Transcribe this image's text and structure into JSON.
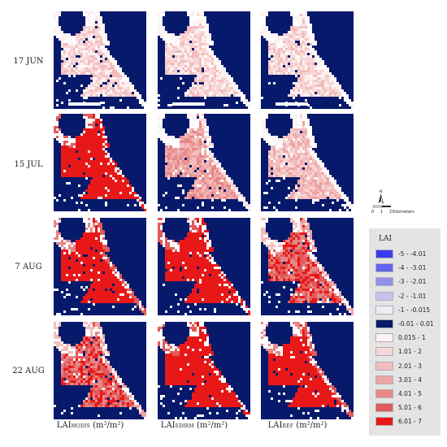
{
  "rows": [
    {
      "label": "17 JUN",
      "levels": [
        1,
        1,
        1
      ]
    },
    {
      "label": "15 JUL",
      "levels": [
        8,
        3,
        2
      ]
    },
    {
      "label": "7 AUG",
      "levels": [
        7,
        8,
        5
      ]
    },
    {
      "label": "22 AUG",
      "levels": [
        5,
        8,
        7
      ]
    }
  ],
  "columns": [
    {
      "main": "LAI",
      "sub": "MODIS",
      "unit": " (m²/m²)"
    },
    {
      "main": "LAI",
      "sub": "EDIRM",
      "unit": " (m²/m²)"
    },
    {
      "main": "LAI",
      "sub": "REF",
      "unit": " (m²/m²)"
    }
  ],
  "scale_bar": {
    "north": "N",
    "ticks": [
      "0",
      "1",
      "2"
    ],
    "unit": "Kilometers"
  },
  "legend": {
    "title": "LAI",
    "items": [
      {
        "label": "-5 - -4.01",
        "color": "#3b3bf0"
      },
      {
        "label": "-4 - -3.01",
        "color": "#6363ee"
      },
      {
        "label": "-3 - -2.01",
        "color": "#9090ea"
      },
      {
        "label": "-2 - -1.01",
        "color": "#c4c4f0"
      },
      {
        "label": "-1 - -0.015",
        "color": "#ededf6"
      },
      {
        "label": "-0.01 - 0.01",
        "color": "#06196b"
      },
      {
        "label": "0.015 - 1",
        "color": "#fdf1f1"
      },
      {
        "label": "1.01 - 2",
        "color": "#f8d6d6"
      },
      {
        "label": "2.01 - 3",
        "color": "#f3bdbd"
      },
      {
        "label": "3.01 - 4",
        "color": "#eda4a4"
      },
      {
        "label": "4.01 - 5",
        "color": "#e78787"
      },
      {
        "label": "5.01 - 6",
        "color": "#e25a5a"
      },
      {
        "label": "6.01 - 7",
        "color": "#e81818"
      }
    ]
  }
}
